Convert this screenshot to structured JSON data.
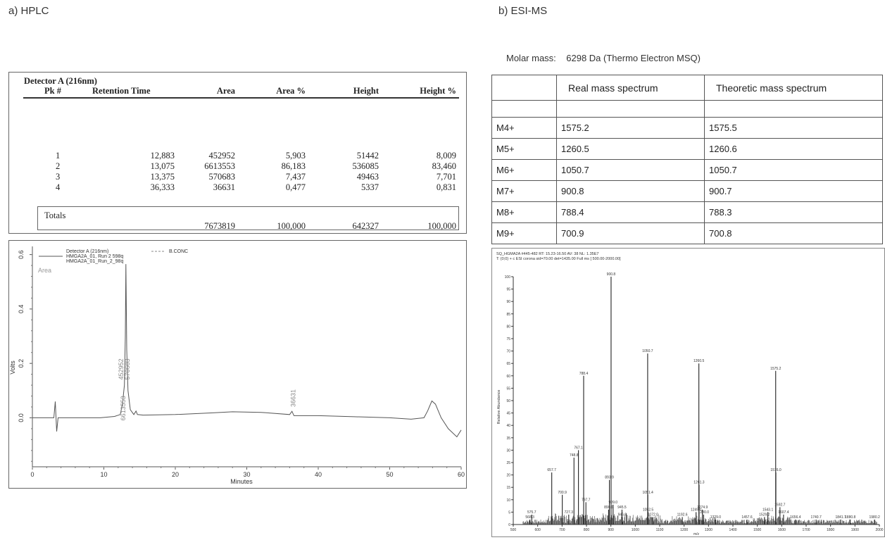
{
  "panels": {
    "hplc_title": "a) HPLC",
    "ms_title": "b) ESI-MS"
  },
  "hplc_table": {
    "detector": "Detector A (216nm)",
    "headers": [
      "Pk #",
      "Retention Time",
      "Area",
      "Area %",
      "Height",
      "Height %"
    ],
    "rows": [
      [
        "1",
        "12,883",
        "452952",
        "5,903",
        "51442",
        "8,009"
      ],
      [
        "2",
        "13,075",
        "6613553",
        "86,183",
        "536085",
        "83,460"
      ],
      [
        "3",
        "13,375",
        "570683",
        "7,437",
        "49463",
        "7,701"
      ],
      [
        "4",
        "36,333",
        "36631",
        "0,477",
        "5337",
        "0,831"
      ]
    ],
    "totals_label": "Totals",
    "totals": [
      "7673819",
      "100,000",
      "642327",
      "100,000"
    ]
  },
  "ms_table": {
    "molar_label": "Molar mass:",
    "molar_value": "6298 Da (Thermo Electron MSQ)",
    "headers": [
      "",
      "Real mass spectrum",
      "Theoretic mass spectrum"
    ],
    "rows": [
      [
        "M4+",
        "1575.2",
        "1575.5"
      ],
      [
        "M5+",
        "1260.5",
        "1260.6"
      ],
      [
        "M6+",
        "1050.7",
        "1050.7"
      ],
      [
        "M7+",
        "900.8",
        "900.7"
      ],
      [
        "M8+",
        "788.4",
        "788.3"
      ],
      [
        "M9+",
        "700.9",
        "700.8"
      ]
    ]
  },
  "chart_data": [
    {
      "type": "line",
      "legend": [
        "Detector A (216nm)",
        "HMGA2A_01, Run 2 598q",
        "HMGA2A_01_Run_2_98q",
        "B.CONC"
      ],
      "area_label": "Area",
      "xlabel": "Minutes",
      "ylabel": "Volts",
      "xlim": [
        0,
        60
      ],
      "ylim": [
        -0.18,
        0.63
      ],
      "xticks": [
        "0",
        "10",
        "20",
        "30",
        "40",
        "50",
        "60"
      ],
      "yticks": [
        "0.0",
        "0.2",
        "0.4",
        "0.6"
      ],
      "series": [
        {
          "values": [
            [
              0,
              0.0
            ],
            [
              3.0,
              0.0
            ],
            [
              3.2,
              0.06
            ],
            [
              3.4,
              -0.05
            ],
            [
              3.6,
              0.0
            ],
            [
              9.5,
              0.0
            ],
            [
              11.5,
              0.005
            ],
            [
              12.3,
              0.012
            ],
            [
              12.6,
              0.05
            ],
            [
              12.88,
              0.12
            ],
            [
              13.0,
              0.3
            ],
            [
              13.08,
              0.565
            ],
            [
              13.2,
              0.25
            ],
            [
              13.38,
              0.1
            ],
            [
              13.7,
              0.03
            ],
            [
              14.2,
              0.012
            ],
            [
              14.5,
              0.025
            ],
            [
              14.7,
              0.012
            ],
            [
              15.5,
              0.01
            ],
            [
              20,
              0.012
            ],
            [
              25,
              0.018
            ],
            [
              28,
              0.022
            ],
            [
              32,
              0.02
            ],
            [
              36.0,
              0.012
            ],
            [
              36.33,
              0.024
            ],
            [
              36.6,
              0.008
            ],
            [
              40,
              0.008
            ],
            [
              45,
              0.004
            ],
            [
              50,
              0.0
            ],
            [
              53,
              -0.005
            ],
            [
              54.8,
              0.0
            ],
            [
              55.3,
              0.025
            ],
            [
              55.9,
              0.062
            ],
            [
              56.4,
              0.05
            ],
            [
              57.2,
              0.0
            ],
            [
              58.2,
              -0.04
            ],
            [
              59.4,
              -0.07
            ],
            [
              60,
              -0.045
            ]
          ]
        }
      ],
      "annotations": [
        {
          "text": "452952",
          "x": 12.7,
          "y": 0.14
        },
        {
          "text": "570683",
          "x": 13.6,
          "y": 0.14
        },
        {
          "text": "6613553",
          "x": 13.0,
          "y": -0.01
        },
        {
          "text": "36631",
          "x": 36.8,
          "y": 0.04
        }
      ]
    },
    {
      "type": "bar",
      "header_lines": [
        "SQ_HGMA2A #445-482  RT: 15.23-16.50  AV: 38  NL: 1.35E7",
        "T: {0;0} + c ESI corona sid=70.00  det=1435.00 Full ms [ 500.00-2000.00]"
      ],
      "xlabel": "m/z",
      "ylabel": "Relative Abundance",
      "xlim": [
        500,
        2000
      ],
      "ylim": [
        0,
        100
      ],
      "xticks": [
        "500",
        "600",
        "700",
        "800",
        "900",
        "1000",
        "1100",
        "1200",
        "1300",
        "1400",
        "1500",
        "1600",
        "1700",
        "1800",
        "1900",
        "2000"
      ],
      "yticks": [
        "0",
        "5",
        "10",
        "15",
        "20",
        "25",
        "30",
        "35",
        "40",
        "45",
        "50",
        "55",
        "60",
        "65",
        "70",
        "75",
        "80",
        "85",
        "90",
        "95",
        "100"
      ],
      "peaks": [
        {
          "mz": 568.3,
          "y": 2
        },
        {
          "mz": 575.7,
          "y": 4
        },
        {
          "mz": 657.7,
          "y": 21
        },
        {
          "mz": 700.9,
          "y": 12
        },
        {
          "mz": 727.3,
          "y": 4
        },
        {
          "mz": 748.8,
          "y": 27
        },
        {
          "mz": 767.1,
          "y": 30
        },
        {
          "mz": 788.4,
          "y": 60
        },
        {
          "mz": 797.7,
          "y": 9
        },
        {
          "mz": 890.6,
          "y": 6
        },
        {
          "mz": 893.9,
          "y": 18
        },
        {
          "mz": 900.8,
          "y": 100
        },
        {
          "mz": 909.0,
          "y": 8
        },
        {
          "mz": 945.5,
          "y": 6
        },
        {
          "mz": 946.9,
          "y": 3
        },
        {
          "mz": 1050.7,
          "y": 69
        },
        {
          "mz": 1051.4,
          "y": 12
        },
        {
          "mz": 1052.5,
          "y": 5
        },
        {
          "mz": 1072.0,
          "y": 3
        },
        {
          "mz": 1192.6,
          "y": 3
        },
        {
          "mz": 1249.0,
          "y": 5
        },
        {
          "mz": 1260.5,
          "y": 65
        },
        {
          "mz": 1261.3,
          "y": 16
        },
        {
          "mz": 1274.9,
          "y": 6
        },
        {
          "mz": 1280.0,
          "y": 4
        },
        {
          "mz": 1329.0,
          "y": 2
        },
        {
          "mz": 1457.6,
          "y": 2
        },
        {
          "mz": 1529.2,
          "y": 3
        },
        {
          "mz": 1543.1,
          "y": 5
        },
        {
          "mz": 1575.2,
          "y": 62
        },
        {
          "mz": 1576.0,
          "y": 21
        },
        {
          "mz": 1592.7,
          "y": 7
        },
        {
          "mz": 1607.4,
          "y": 4
        },
        {
          "mz": 1656.4,
          "y": 2
        },
        {
          "mz": 1740.7,
          "y": 2
        },
        {
          "mz": 1841.7,
          "y": 2
        },
        {
          "mz": 1880.8,
          "y": 2
        },
        {
          "mz": 1980.2,
          "y": 2
        }
      ]
    }
  ]
}
